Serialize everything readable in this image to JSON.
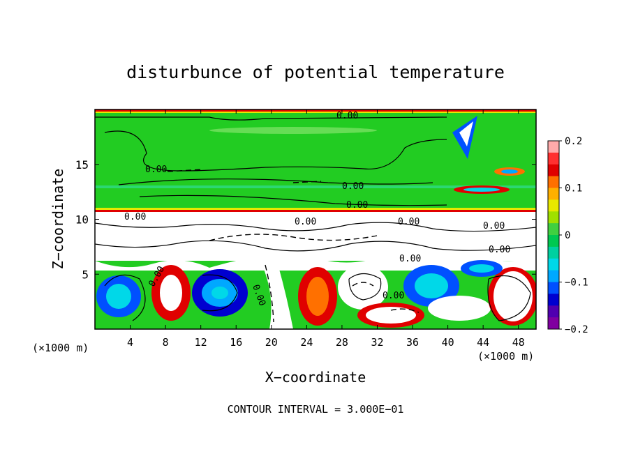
{
  "chart_data": {
    "type": "heatmap",
    "title": "disturbunce of potential temperature",
    "xlabel": "X−coordinate",
    "ylabel": "Z−coordinate",
    "x_unit_label_left": "(×1000 m)",
    "x_unit_label_right": "(×1000 m)",
    "footer": "CONTOUR INTERVAL = 3.000E−01",
    "xlim": [
      0,
      50
    ],
    "ylim": [
      0,
      20
    ],
    "x_ticks": [
      "4",
      "8",
      "12",
      "16",
      "20",
      "24",
      "28",
      "32",
      "36",
      "40",
      "44",
      "48"
    ],
    "y_ticks": [
      "5",
      "10",
      "15"
    ],
    "colorbar": {
      "vmin": -0.2,
      "vmax": 0.2,
      "tick_labels": [
        "0.2",
        "0.1",
        "0",
        "−0.1",
        "−0.2"
      ],
      "colors": [
        "#ffaaaa",
        "#ff3030",
        "#e00000",
        "#ff7000",
        "#ffb000",
        "#e8e800",
        "#a0e000",
        "#40d040",
        "#00c850",
        "#00d0a0",
        "#00d8e8",
        "#00a8ff",
        "#0050ff",
        "#0000d0",
        "#5000b0",
        "#8000a0"
      ]
    },
    "contour_labels": [
      "0.00",
      "0.00",
      "0.00",
      "0.00",
      "0.00",
      "0.00",
      "0.00",
      "0.00",
      "0.00",
      "0.00",
      "0.00",
      "0.00",
      "0.00"
    ],
    "contour_interval": "3.000E−01"
  }
}
